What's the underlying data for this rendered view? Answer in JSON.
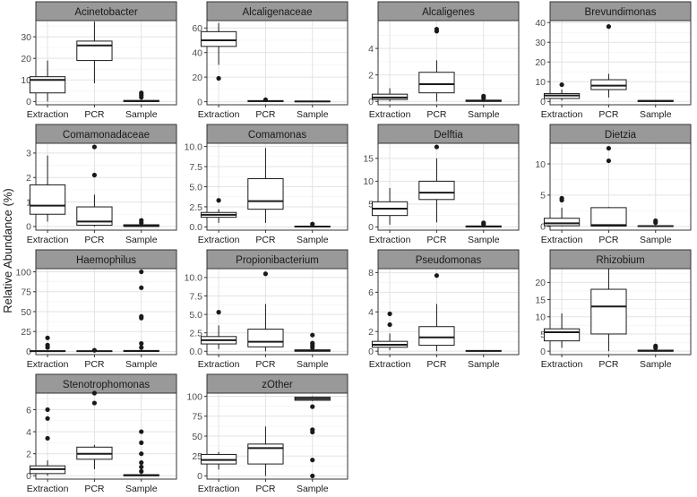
{
  "chart_data": {
    "type": "boxplot",
    "title": "",
    "xlabel": "",
    "ylabel": "Relative Abundance (%)",
    "categories": [
      "Extraction",
      "PCR",
      "Sample"
    ],
    "panels": [
      {
        "name": "Acinetobacter",
        "ylim": [
          -1.5,
          37.5
        ],
        "ticks": [
          0,
          10,
          20,
          30
        ],
        "boxes": [
          {
            "q1": 4,
            "median": 10,
            "q3": 11.5,
            "low": 0,
            "high": 19,
            "outliers": []
          },
          {
            "q1": 19,
            "median": 26,
            "q3": 28,
            "low": 8.5,
            "high": 37,
            "outliers": []
          },
          {
            "q1": 0,
            "median": 0.2,
            "q3": 0.5,
            "low": 0,
            "high": 1,
            "outliers": [
              2,
              3,
              4
            ]
          }
        ]
      },
      {
        "name": "Alcaligenaceae",
        "ylim": [
          -2.5,
          66
        ],
        "ticks": [
          0,
          20,
          40,
          60
        ],
        "boxes": [
          {
            "q1": 45,
            "median": 50,
            "q3": 57,
            "low": 30,
            "high": 64,
            "outliers": [
              19
            ]
          },
          {
            "q1": 0.2,
            "median": 0.5,
            "q3": 0.8,
            "low": 0,
            "high": 1.2,
            "outliers": [
              1.6
            ]
          },
          {
            "q1": 0,
            "median": 0.2,
            "q3": 0.4,
            "low": 0,
            "high": 0.6,
            "outliers": []
          }
        ]
      },
      {
        "name": "Alcaligenes",
        "ylim": [
          -0.25,
          6.1
        ],
        "ticks": [
          0,
          2,
          4
        ],
        "boxes": [
          {
            "q1": 0.15,
            "median": 0.3,
            "q3": 0.55,
            "low": 0,
            "high": 1.0,
            "outliers": []
          },
          {
            "q1": 0.65,
            "median": 1.3,
            "q3": 2.2,
            "low": 0,
            "high": 3.1,
            "outliers": [
              5.3,
              5.45
            ]
          },
          {
            "q1": 0,
            "median": 0.05,
            "q3": 0.1,
            "low": 0,
            "high": 0.15,
            "outliers": [
              0.25,
              0.4
            ]
          }
        ]
      },
      {
        "name": "Brevundimonas",
        "ylim": [
          -1.7,
          41
        ],
        "ticks": [
          0,
          10,
          20,
          30,
          40
        ],
        "boxes": [
          {
            "q1": 1.5,
            "median": 3,
            "q3": 4,
            "low": 0.5,
            "high": 6,
            "outliers": [
              8.5
            ]
          },
          {
            "q1": 6,
            "median": 8,
            "q3": 11,
            "low": 2,
            "high": 14,
            "outliers": [
              38
            ]
          },
          {
            "q1": 0,
            "median": 0.2,
            "q3": 0.5,
            "low": 0,
            "high": 0.8,
            "outliers": []
          }
        ]
      },
      {
        "name": "Comamonadaceae",
        "ylim": [
          -0.15,
          3.4
        ],
        "ticks": [
          0,
          1,
          2,
          3
        ],
        "boxes": [
          {
            "q1": 0.5,
            "median": 0.85,
            "q3": 1.7,
            "low": 0.2,
            "high": 2.9,
            "outliers": []
          },
          {
            "q1": 0.05,
            "median": 0.2,
            "q3": 0.8,
            "low": 0,
            "high": 1.3,
            "outliers": [
              2.1,
              3.25
            ]
          },
          {
            "q1": 0,
            "median": 0.03,
            "q3": 0.07,
            "low": 0,
            "high": 0.1,
            "outliers": [
              0.15,
              0.25
            ]
          }
        ]
      },
      {
        "name": "Comamonas",
        "ylim": [
          -0.4,
          10.4
        ],
        "ticks": [
          0.0,
          2.5,
          5.0,
          7.5,
          10.0
        ],
        "boxes": [
          {
            "q1": 1.2,
            "median": 1.5,
            "q3": 1.8,
            "low": 0.5,
            "high": 2.2,
            "outliers": [
              3.3
            ]
          },
          {
            "q1": 2.2,
            "median": 3.2,
            "q3": 6,
            "low": 0.5,
            "high": 9.8,
            "outliers": []
          },
          {
            "q1": 0,
            "median": 0.05,
            "q3": 0.1,
            "low": 0,
            "high": 0.15,
            "outliers": [
              0.35
            ]
          }
        ]
      },
      {
        "name": "Delftia",
        "ylim": [
          -0.7,
          18.3
        ],
        "ticks": [
          0,
          5,
          10,
          15
        ],
        "boxes": [
          {
            "q1": 2.5,
            "median": 4,
            "q3": 5.5,
            "low": 0.5,
            "high": 8.5,
            "outliers": []
          },
          {
            "q1": 6,
            "median": 7.5,
            "q3": 10,
            "low": 1,
            "high": 15,
            "outliers": [
              17.5
            ]
          },
          {
            "q1": 0,
            "median": 0.1,
            "q3": 0.2,
            "low": 0,
            "high": 0.3,
            "outliers": [
              0.6,
              0.9
            ]
          }
        ]
      },
      {
        "name": "Dietzia",
        "ylim": [
          -0.6,
          13.3
        ],
        "ticks": [
          0,
          5,
          10
        ],
        "boxes": [
          {
            "q1": 0.1,
            "median": 0.5,
            "q3": 1.3,
            "low": 0,
            "high": 3.0,
            "outliers": [
              4.2,
              4.5
            ]
          },
          {
            "q1": 0.05,
            "median": 0.2,
            "q3": 3.0,
            "low": 0,
            "high": 3.1,
            "outliers": [
              10.5,
              12.5
            ]
          },
          {
            "q1": 0,
            "median": 0.05,
            "q3": 0.1,
            "low": 0,
            "high": 0.2,
            "outliers": [
              0.6,
              0.9
            ]
          }
        ]
      },
      {
        "name": "Haemophilus",
        "ylim": [
          -4,
          104
        ],
        "ticks": [
          0,
          25,
          50,
          75,
          100
        ],
        "boxes": [
          {
            "q1": 0,
            "median": 0.3,
            "q3": 0.8,
            "low": 0,
            "high": 1,
            "outliers": [
              5,
              8,
              17
            ]
          },
          {
            "q1": 0,
            "median": 0.3,
            "q3": 0.6,
            "low": 0,
            "high": 0.8,
            "outliers": [
              1.5
            ]
          },
          {
            "q1": 0,
            "median": 0.5,
            "q3": 1.2,
            "low": 0,
            "high": 2,
            "outliers": [
              5,
              10,
              42,
              44,
              80,
              100
            ]
          }
        ]
      },
      {
        "name": "Propionibacterium",
        "ylim": [
          -0.45,
          11.2
        ],
        "ticks": [
          0.0,
          2.5,
          5.0,
          7.5,
          10.0
        ],
        "boxes": [
          {
            "q1": 1.0,
            "median": 1.5,
            "q3": 2.0,
            "low": 0.3,
            "high": 3.5,
            "outliers": [
              5.3
            ]
          },
          {
            "q1": 0.6,
            "median": 1.3,
            "q3": 3.0,
            "low": 0,
            "high": 6.4,
            "outliers": [
              10.5
            ]
          },
          {
            "q1": 0,
            "median": 0.1,
            "q3": 0.2,
            "low": 0,
            "high": 0.3,
            "outliers": [
              0.5,
              0.8,
              1.1,
              2.2
            ]
          }
        ]
      },
      {
        "name": "Pseudomonas",
        "ylim": [
          -0.35,
          8.4
        ],
        "ticks": [
          0,
          2,
          4,
          6,
          8
        ],
        "boxes": [
          {
            "q1": 0.4,
            "median": 0.65,
            "q3": 1.0,
            "low": 0.1,
            "high": 1.8,
            "outliers": [
              2.7,
              3.8
            ]
          },
          {
            "q1": 0.6,
            "median": 1.4,
            "q3": 2.5,
            "low": 0,
            "high": 4.8,
            "outliers": [
              7.7
            ]
          },
          {
            "q1": 0,
            "median": 0.03,
            "q3": 0.06,
            "low": 0,
            "high": 0.1,
            "outliers": []
          }
        ]
      },
      {
        "name": "Rhizobium",
        "ylim": [
          -1,
          24
        ],
        "ticks": [
          0,
          5,
          10,
          15,
          20
        ],
        "boxes": [
          {
            "q1": 3,
            "median": 5.5,
            "q3": 6.5,
            "low": 1,
            "high": 11,
            "outliers": []
          },
          {
            "q1": 5,
            "median": 13,
            "q3": 18,
            "low": 0,
            "high": 24,
            "outliers": []
          },
          {
            "q1": 0,
            "median": 0.1,
            "q3": 0.3,
            "low": 0,
            "high": 0.5,
            "outliers": [
              1.0,
              1.5
            ]
          }
        ]
      },
      {
        "name": "Stenotrophomonas",
        "ylim": [
          -0.3,
          7.5
        ],
        "ticks": [
          0,
          2,
          4,
          6
        ],
        "boxes": [
          {
            "q1": 0.2,
            "median": 0.6,
            "q3": 0.9,
            "low": 0,
            "high": 1.4,
            "outliers": [
              3.4,
              5.2,
              6.0
            ]
          },
          {
            "q1": 1.5,
            "median": 2.0,
            "q3": 2.6,
            "low": 0.6,
            "high": 2.8,
            "outliers": [
              6.6,
              7.5
            ]
          },
          {
            "q1": 0,
            "median": 0.05,
            "q3": 0.1,
            "low": 0,
            "high": 0.2,
            "outliers": [
              0.4,
              0.8,
              1.2,
              2.0,
              3.0,
              4.0
            ]
          }
        ]
      },
      {
        "name": "zOther",
        "ylim": [
          -4,
          104
        ],
        "ticks": [
          0,
          25,
          50,
          75,
          100
        ],
        "boxes": [
          {
            "q1": 15,
            "median": 20,
            "q3": 27,
            "low": 8,
            "high": 30,
            "outliers": []
          },
          {
            "q1": 15,
            "median": 35,
            "q3": 40,
            "low": 0,
            "high": 62,
            "outliers": []
          },
          {
            "q1": 95,
            "median": 97,
            "q3": 99,
            "low": 94,
            "high": 100,
            "outliers": [
              0,
              20,
              55,
              58,
              87
            ]
          }
        ]
      }
    ]
  }
}
